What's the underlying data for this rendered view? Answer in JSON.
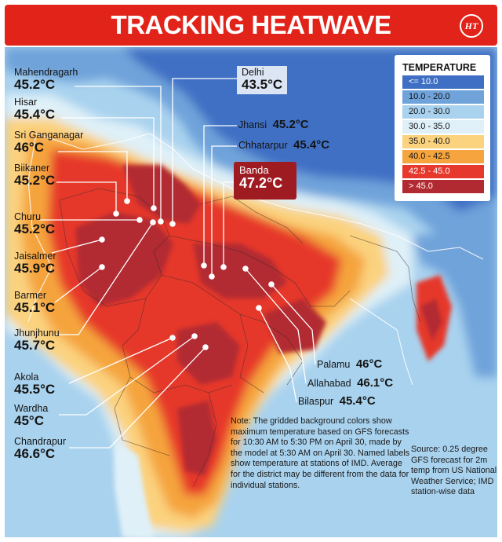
{
  "banner": {
    "title": "TRACKING HEATWAVE",
    "logo_text": "HT"
  },
  "legend": {
    "title": "TEMPERATURE",
    "bins": [
      {
        "label": "<= 10.0",
        "color": "#3f6fc4"
      },
      {
        "label": "10.0 - 20.0",
        "color": "#6fa3da"
      },
      {
        "label": "20.0 - 30.0",
        "color": "#a9d2ee"
      },
      {
        "label": "30.0 - 35.0",
        "color": "#dff0f8"
      },
      {
        "label": "35.0 - 40.0",
        "color": "#fbd27e"
      },
      {
        "label": "40.0 - 42.5",
        "color": "#f5a43e"
      },
      {
        "label": "42.5 - 45.0",
        "color": "#e6382c"
      },
      {
        "label": "> 45.0",
        "color": "#b22a31"
      }
    ]
  },
  "stations": {
    "mahendragarh": {
      "name": "Mahendragarh",
      "temp": "45.2°C"
    },
    "hisar": {
      "name": "Hisar",
      "temp": "45.4°C"
    },
    "sri_ganganagar": {
      "name": "Sri Ganganagar",
      "temp": "46°C"
    },
    "biikaner": {
      "name": "Biikaner",
      "temp": "45.2°C"
    },
    "churu": {
      "name": "Churu",
      "temp": "45.2°C"
    },
    "jaisalmer": {
      "name": "Jaisalmer",
      "temp": "45.9°C"
    },
    "barmer": {
      "name": "Barmer",
      "temp": "45.1°C"
    },
    "jhunjhunu": {
      "name": "Jhunjhunu",
      "temp": "45.7°C"
    },
    "akola": {
      "name": "Akola",
      "temp": "45.5°C"
    },
    "wardha": {
      "name": "Wardha",
      "temp": "45°C"
    },
    "chandrapur": {
      "name": "Chandrapur",
      "temp": "46.6°C"
    },
    "delhi": {
      "name": "Delhi",
      "temp": "43.5°C"
    },
    "jhansi": {
      "name": "Jhansi",
      "temp": "45.2°C"
    },
    "chhatarpur": {
      "name": "Chhatarpur",
      "temp": "45.4°C"
    },
    "banda": {
      "name": "Banda",
      "temp": "47.2°C"
    },
    "palamu": {
      "name": "Palamu",
      "temp": "46°C"
    },
    "allahabad": {
      "name": "Allahabad",
      "temp": "46.1°C"
    },
    "bilaspur": {
      "name": "Bilaspur",
      "temp": "45.4°C"
    }
  },
  "note": "Note: The gridded background colors show maximum temperature based on GFS forecasts for 10:30 AM to 5:30 PM on April 30, made by the model at 5:30 AM on April 30. Named labels show temperature at stations of IMD. Average for the district may be different from the data for individual stations.",
  "source": "Source: 0.25 degree GFS forecast for 2m temp from US National Weather Service; IMD station-wise data"
}
